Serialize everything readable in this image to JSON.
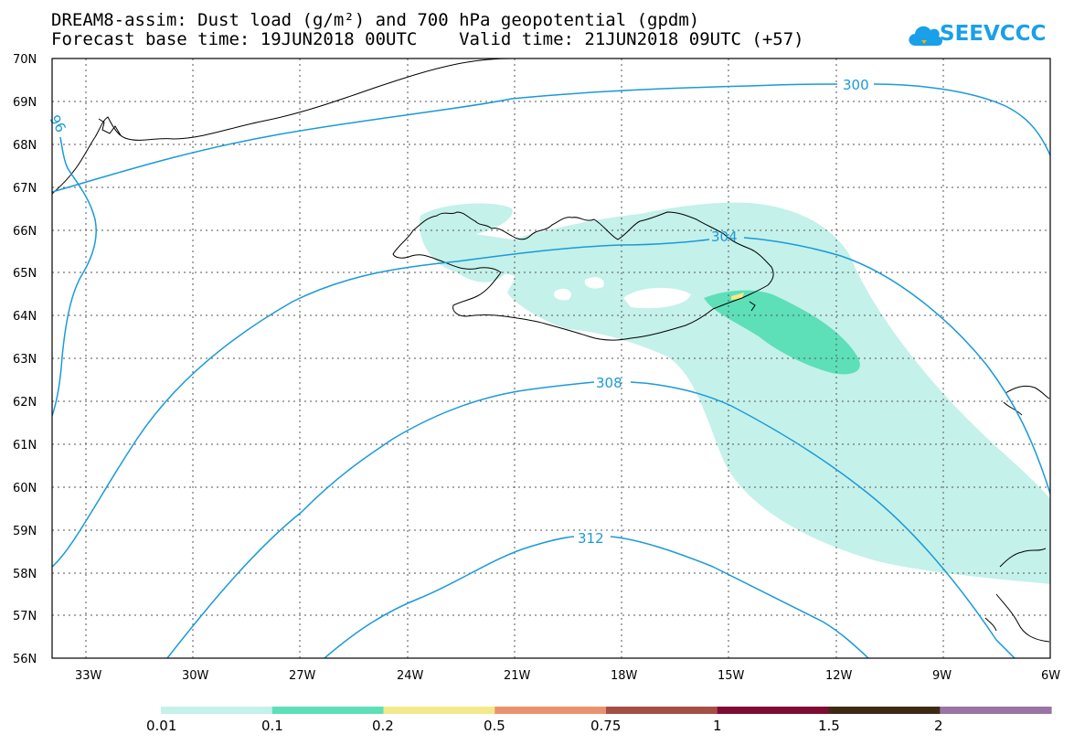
{
  "title_line1": "DREAM8-assim: Dust load (g/m²) and 700 hPa geopotential (gpdm)",
  "title_line2": "Forecast base time: 19JUN2018 00UTC    Valid time: 21JUN2018 09UTC (+57)",
  "logo_text": "SEEVCCC",
  "logo_icon": "cloud-icon",
  "map": {
    "lat_labels": [
      "70N",
      "69N",
      "68N",
      "67N",
      "66N",
      "65N",
      "64N",
      "63N",
      "62N",
      "61N",
      "60N",
      "59N",
      "58N",
      "57N",
      "56N"
    ],
    "lon_labels": [
      "33W",
      "30W",
      "27W",
      "24W",
      "21W",
      "18W",
      "15W",
      "12W",
      "9W",
      "6W"
    ],
    "lat_values": [
      70,
      69,
      68,
      67,
      66,
      65,
      64,
      63,
      62,
      61,
      60,
      59,
      58,
      57,
      56
    ],
    "lon_values": [
      -33,
      -30,
      -27,
      -24,
      -21,
      -18,
      -15,
      -12,
      -9,
      -6
    ],
    "lon_range": [
      -34,
      -6
    ],
    "lat_range": [
      56,
      70
    ],
    "gridlines": "dotted",
    "contour_color": "#1a9ad9",
    "contour_labels": [
      {
        "label": "300",
        "lon": -15.0,
        "lat": 69.4
      },
      {
        "label": "304",
        "lon": -15.5,
        "lat": 65.85
      },
      {
        "label": "308",
        "lon": -18.5,
        "lat": 62.45
      },
      {
        "label": "312",
        "lon": -19.1,
        "lat": 58.8
      },
      {
        "label": "96",
        "lon": -33.8,
        "lat": 68.5
      }
    ]
  },
  "colorbar": {
    "labels": [
      "0.01",
      "0.1",
      "0.2",
      "0.5",
      "0.75",
      "1",
      "1.5",
      "2"
    ],
    "colors": [
      "#c4f1ea",
      "#5ddfb8",
      "#f4e98a",
      "#ea926e",
      "#a44e44",
      "#7e0b32",
      "#3e2a14",
      "#9a74a4"
    ]
  }
}
